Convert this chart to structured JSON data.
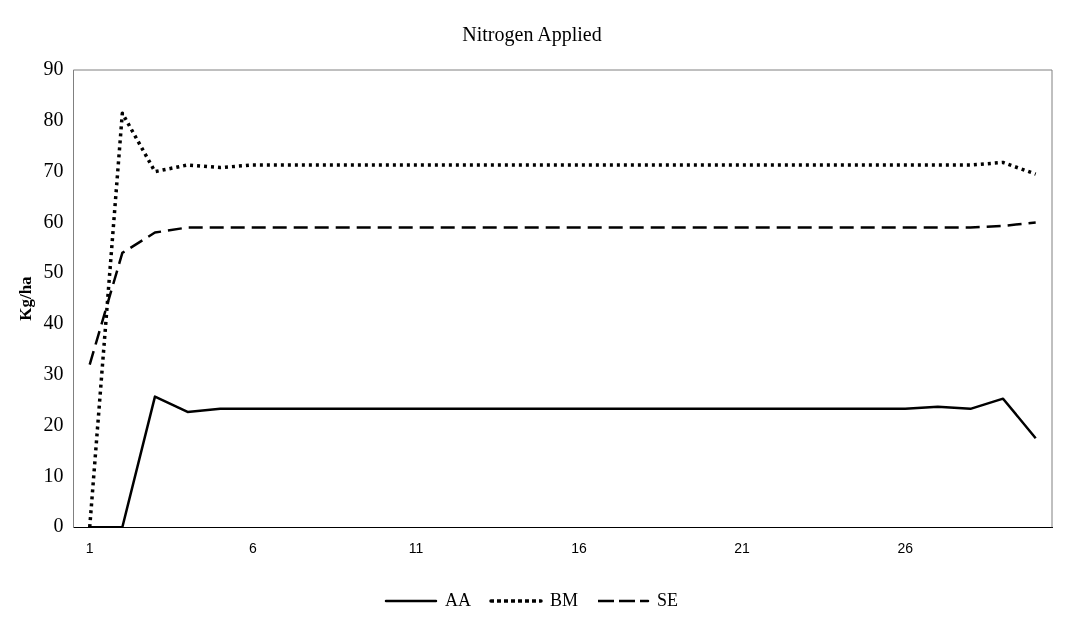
{
  "chart_data": {
    "type": "line",
    "title": "Nitrogen Applied",
    "ylabel": "Kg/ha",
    "categories": [
      "1",
      null,
      null,
      null,
      null,
      "6",
      null,
      null,
      null,
      null,
      "11",
      null,
      null,
      null,
      null,
      "16",
      null,
      null,
      null,
      null,
      "21",
      null,
      null,
      null,
      null,
      "26",
      null,
      null,
      null,
      null
    ],
    "series": [
      {
        "name": "AA",
        "color": "#000000",
        "line_style": "solid",
        "values": [
          0,
          0,
          25.7,
          22.7,
          23.3,
          23.3,
          23.3,
          23.3,
          23.3,
          23.3,
          23.3,
          23.3,
          23.3,
          23.3,
          23.3,
          23.3,
          23.3,
          23.3,
          23.3,
          23.3,
          23.3,
          23.3,
          23.3,
          23.3,
          23.3,
          23.3,
          23.7,
          23.3,
          25.3,
          17.5
        ]
      },
      {
        "name": "BM",
        "color": "#000000",
        "line_style": "dotted",
        "values": [
          0,
          81.5,
          70,
          71.3,
          70.8,
          71.3,
          71.3,
          71.3,
          71.3,
          71.3,
          71.3,
          71.3,
          71.3,
          71.3,
          71.3,
          71.3,
          71.3,
          71.3,
          71.3,
          71.3,
          71.3,
          71.3,
          71.3,
          71.3,
          71.3,
          71.3,
          71.3,
          71.3,
          71.8,
          69.5
        ]
      },
      {
        "name": "SE",
        "color": "#000000",
        "line_style": "dashed",
        "values": [
          32,
          54,
          58,
          59,
          59,
          59,
          59,
          59,
          59,
          59,
          59,
          59,
          59,
          59,
          59,
          59,
          59,
          59,
          59,
          59,
          59,
          59,
          59,
          59,
          59,
          59,
          59,
          59,
          59.3,
          60
        ]
      }
    ],
    "ylim": [
      0,
      90
    ],
    "yticks": [
      0,
      10,
      20,
      30,
      40,
      50,
      60,
      70,
      80,
      90
    ],
    "grid": false,
    "legend": "bottom",
    "marker": "none"
  }
}
